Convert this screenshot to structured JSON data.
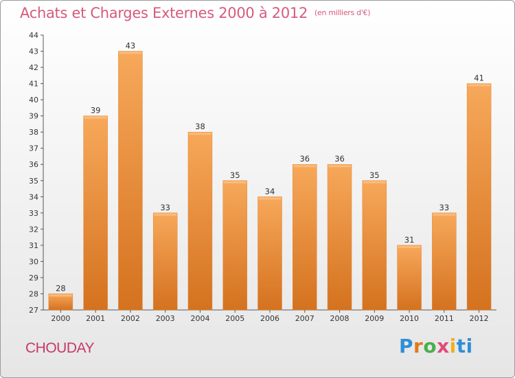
{
  "chart_data": {
    "type": "bar",
    "title": "Achats et Charges Externes 2000 à 2012",
    "subtitle": "(en milliers d'€)",
    "xlabel": "",
    "ylabel": "",
    "categories": [
      "2000",
      "2001",
      "2002",
      "2003",
      "2004",
      "2005",
      "2006",
      "2007",
      "2008",
      "2009",
      "2010",
      "2011",
      "2012"
    ],
    "values": [
      28,
      39,
      43,
      33,
      38,
      35,
      34,
      36,
      36,
      35,
      31,
      33,
      41
    ],
    "ylim": [
      27,
      44
    ],
    "yticks": [
      27,
      28,
      29,
      30,
      31,
      32,
      33,
      34,
      35,
      36,
      37,
      38,
      39,
      40,
      41,
      42,
      43,
      44
    ],
    "grid": false,
    "legend": "none",
    "bar_color_top": "#f7a85a",
    "bar_color_bottom": "#d4721f"
  },
  "footer": {
    "commune": "CHOUDAY",
    "logo_letters": [
      "P",
      "r",
      "o",
      "x",
      "i",
      "ti"
    ]
  }
}
